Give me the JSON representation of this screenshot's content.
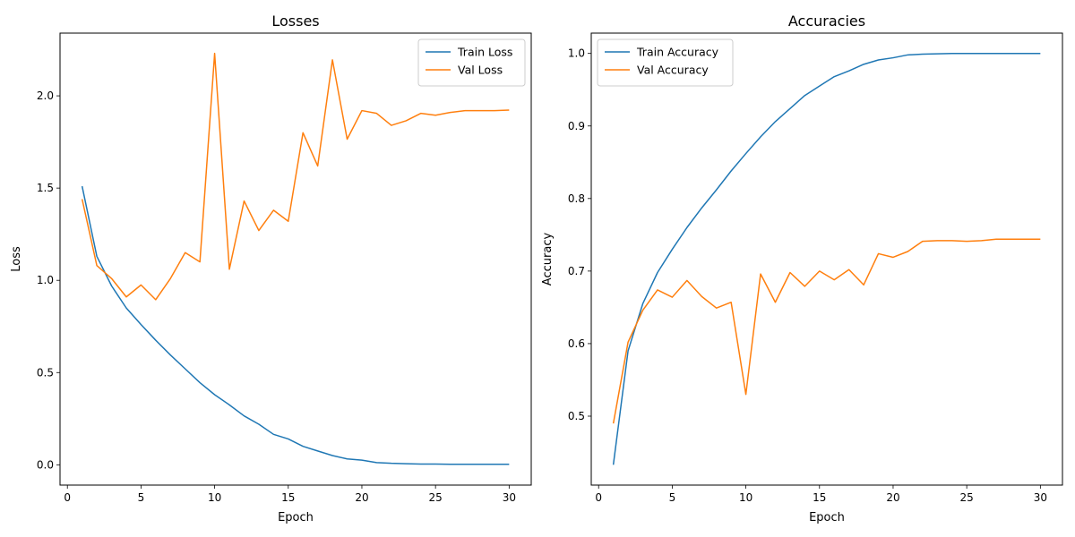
{
  "chart_data": [
    {
      "type": "line",
      "title": "Losses",
      "xlabel": "Epoch",
      "ylabel": "Loss",
      "xlim": [
        -0.5,
        31.5
      ],
      "ylim": [
        -0.11,
        2.34
      ],
      "xticks": [
        0,
        5,
        10,
        15,
        20,
        25,
        30
      ],
      "yticks": [
        0.0,
        0.5,
        1.0,
        1.5,
        2.0
      ],
      "ytick_decimals": 1,
      "legend": "top-right",
      "x": [
        1,
        2,
        3,
        4,
        5,
        6,
        7,
        8,
        9,
        10,
        11,
        12,
        13,
        14,
        15,
        16,
        17,
        18,
        19,
        20,
        21,
        22,
        23,
        24,
        25,
        26,
        27,
        28,
        29,
        30
      ],
      "series": [
        {
          "name": "Train Loss",
          "color": "#1f77b4",
          "values": [
            1.51,
            1.13,
            0.97,
            0.85,
            0.76,
            0.675,
            0.595,
            0.52,
            0.445,
            0.38,
            0.325,
            0.265,
            0.22,
            0.165,
            0.14,
            0.1,
            0.075,
            0.05,
            0.032,
            0.025,
            0.012,
            0.008,
            0.006,
            0.004,
            0.004,
            0.003,
            0.003,
            0.003,
            0.003,
            0.003
          ]
        },
        {
          "name": "Val Loss",
          "color": "#ff7f0e",
          "values": [
            1.44,
            1.08,
            1.01,
            0.91,
            0.975,
            0.895,
            1.01,
            1.15,
            1.1,
            2.23,
            1.06,
            1.43,
            1.27,
            1.38,
            1.32,
            1.8,
            1.62,
            2.195,
            1.765,
            1.92,
            1.905,
            1.84,
            1.865,
            1.905,
            1.895,
            1.91,
            1.92,
            1.92,
            1.92,
            1.923
          ]
        }
      ]
    },
    {
      "type": "line",
      "title": "Accuracies",
      "xlabel": "Epoch",
      "ylabel": "Accuracy",
      "xlim": [
        -0.5,
        31.5
      ],
      "ylim": [
        0.405,
        1.028
      ],
      "xticks": [
        0,
        5,
        10,
        15,
        20,
        25,
        30
      ],
      "yticks": [
        0.5,
        0.6,
        0.7,
        0.8,
        0.9,
        1.0
      ],
      "ytick_decimals": 1,
      "legend": "top-left",
      "x": [
        1,
        2,
        3,
        4,
        5,
        6,
        7,
        8,
        9,
        10,
        11,
        12,
        13,
        14,
        15,
        16,
        17,
        18,
        19,
        20,
        21,
        22,
        23,
        24,
        25,
        26,
        27,
        28,
        29,
        30
      ],
      "series": [
        {
          "name": "Train Accuracy",
          "color": "#1f77b4",
          "values": [
            0.433,
            0.59,
            0.655,
            0.698,
            0.73,
            0.76,
            0.787,
            0.812,
            0.838,
            0.862,
            0.885,
            0.906,
            0.924,
            0.942,
            0.955,
            0.968,
            0.976,
            0.985,
            0.991,
            0.994,
            0.998,
            0.999,
            0.9995,
            1.0,
            1.0,
            1.0,
            1.0,
            1.0,
            1.0,
            1.0
          ]
        },
        {
          "name": "Val Accuracy",
          "color": "#ff7f0e",
          "values": [
            0.49,
            0.602,
            0.646,
            0.674,
            0.664,
            0.687,
            0.665,
            0.649,
            0.657,
            0.53,
            0.696,
            0.657,
            0.698,
            0.679,
            0.7,
            0.688,
            0.702,
            0.681,
            0.724,
            0.719,
            0.727,
            0.741,
            0.742,
            0.742,
            0.741,
            0.742,
            0.744,
            0.744,
            0.744,
            0.744
          ]
        }
      ]
    }
  ]
}
